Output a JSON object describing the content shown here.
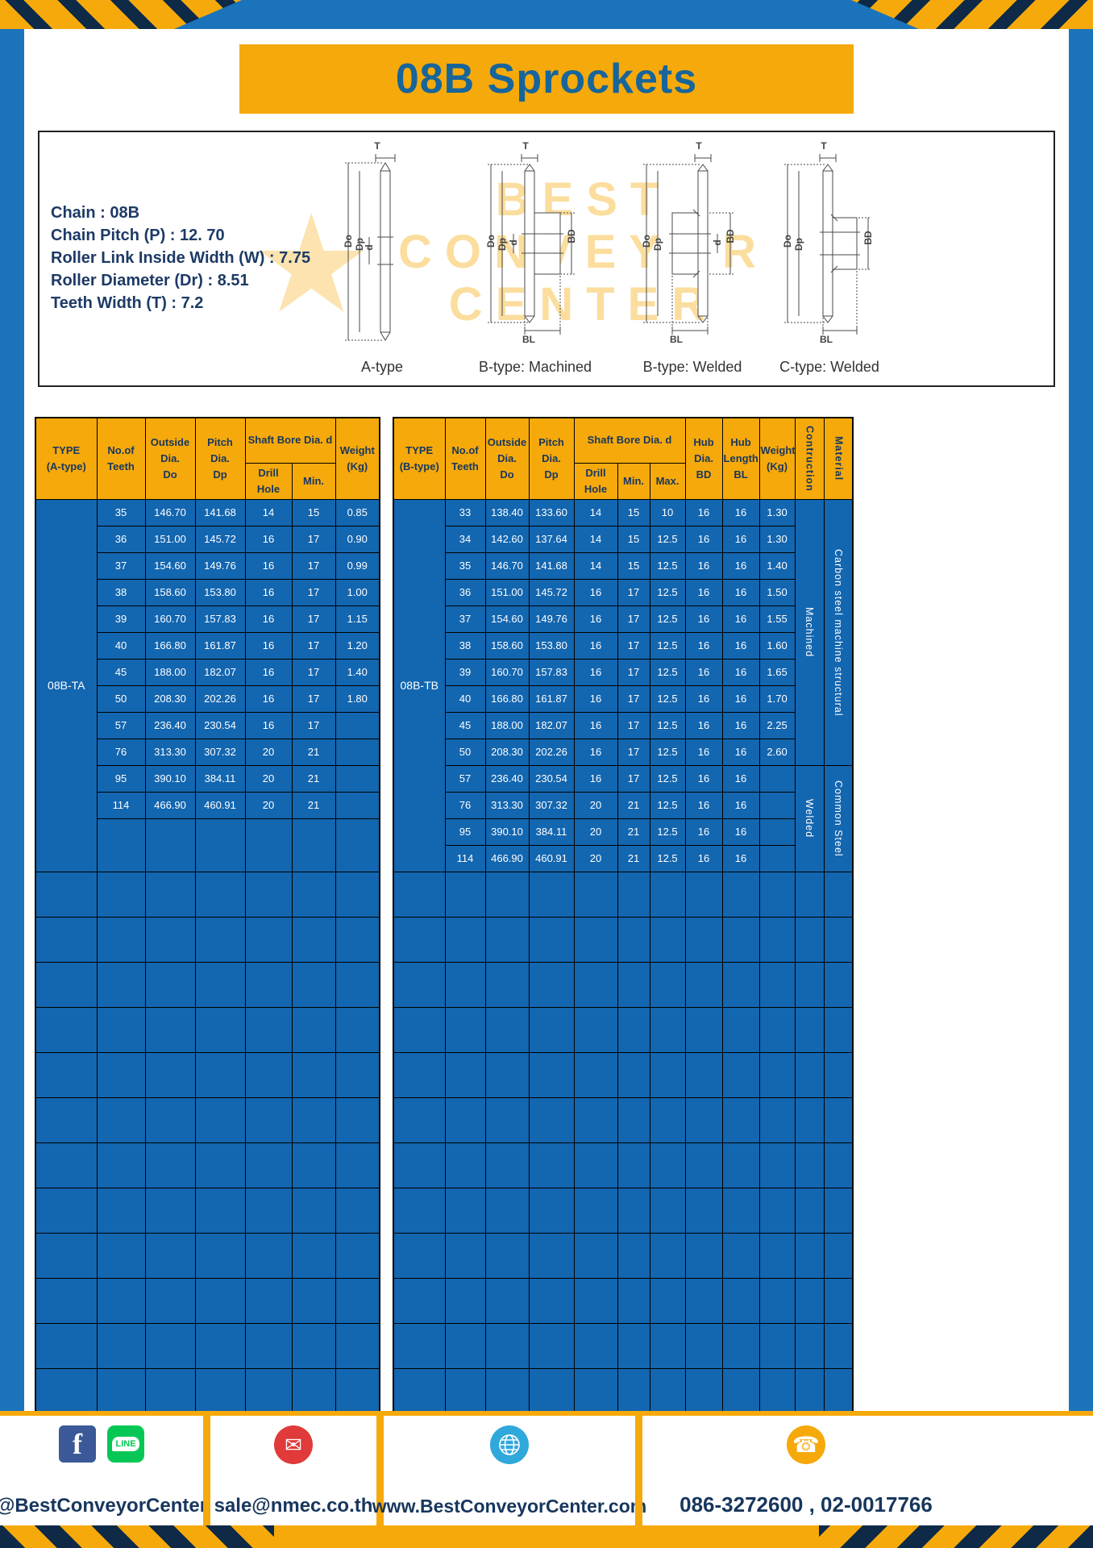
{
  "page": {
    "title": "08B Sprockets"
  },
  "specs": {
    "lines": [
      "Chain : 08B",
      "Chain Pitch (P) : 12. 70",
      "Roller Link Inside Width (W) : 7.75",
      "Roller Diameter (Dr) : 8.51",
      "Teeth Width (T) : 7.2"
    ]
  },
  "watermark": {
    "star": "★",
    "lines": [
      "BEST",
      "CONVEYOR",
      "CENTER"
    ]
  },
  "diagrams": {
    "captions": [
      "A-type",
      "B-type: Machined",
      "B-type: Welded",
      "C-type: Welded"
    ],
    "dims": {
      "t": "T",
      "outer": "Do",
      "pitch": "Dp",
      "bore": "d",
      "hub_dia": "BD",
      "hub_len": "BL"
    }
  },
  "table_a": {
    "header": {
      "type": "TYPE\n(A-type)",
      "teeth": "No.of\nTeeth",
      "outside": "Outside\nDia.\nDo",
      "pitch": "Pitch Dia.\nDp",
      "shaft": "Shaft Bore Dia. d",
      "drill": "Drill Hole",
      "min": "Min.",
      "weight": "Weight\n(Kg)"
    },
    "type_label": "08B-TA",
    "rows": [
      [
        "35",
        "146.70",
        "141.68",
        "14",
        "15",
        "0.85"
      ],
      [
        "36",
        "151.00",
        "145.72",
        "16",
        "17",
        "0.90"
      ],
      [
        "37",
        "154.60",
        "149.76",
        "16",
        "17",
        "0.99"
      ],
      [
        "38",
        "158.60",
        "153.80",
        "16",
        "17",
        "1.00"
      ],
      [
        "39",
        "160.70",
        "157.83",
        "16",
        "17",
        "1.15"
      ],
      [
        "40",
        "166.80",
        "161.87",
        "16",
        "17",
        "1.20"
      ],
      [
        "45",
        "188.00",
        "182.07",
        "16",
        "17",
        "1.40"
      ],
      [
        "50",
        "208.30",
        "202.26",
        "16",
        "17",
        "1.80"
      ],
      [
        "57",
        "236.40",
        "230.54",
        "16",
        "17",
        ""
      ],
      [
        "76",
        "313.30",
        "307.32",
        "20",
        "21",
        ""
      ],
      [
        "95",
        "390.10",
        "384.11",
        "20",
        "21",
        ""
      ],
      [
        "114",
        "466.90",
        "460.91",
        "20",
        "21",
        ""
      ]
    ],
    "empty_row_count": 12
  },
  "table_b": {
    "header": {
      "type": "TYPE\n(B-type)",
      "teeth": "No.of\nTeeth",
      "outside": "Outside\nDia.\nDo",
      "pitch": "Pitch Dia.\nDp",
      "shaft": "Shaft Bore Dia. d",
      "drill": "Drill Hole",
      "min": "Min.",
      "max": "Max.",
      "hub_dia": "Hub Dia.\nBD",
      "hub_len": "Hub\nLength\nBL",
      "weight": "Weight\n(Kg)",
      "construction": "Contruction",
      "material": "Material"
    },
    "type_label": "08B-TB",
    "rows": [
      [
        "33",
        "138.40",
        "133.60",
        "14",
        "15",
        "10",
        "16",
        "16",
        "1.30"
      ],
      [
        "34",
        "142.60",
        "137.64",
        "14",
        "15",
        "12.5",
        "16",
        "16",
        "1.30"
      ],
      [
        "35",
        "146.70",
        "141.68",
        "14",
        "15",
        "12.5",
        "16",
        "16",
        "1.40"
      ],
      [
        "36",
        "151.00",
        "145.72",
        "16",
        "17",
        "12.5",
        "16",
        "16",
        "1.50"
      ],
      [
        "37",
        "154.60",
        "149.76",
        "16",
        "17",
        "12.5",
        "16",
        "16",
        "1.55"
      ],
      [
        "38",
        "158.60",
        "153.80",
        "16",
        "17",
        "12.5",
        "16",
        "16",
        "1.60"
      ],
      [
        "39",
        "160.70",
        "157.83",
        "16",
        "17",
        "12.5",
        "16",
        "16",
        "1.65"
      ],
      [
        "40",
        "166.80",
        "161.87",
        "16",
        "17",
        "12.5",
        "16",
        "16",
        "1.70"
      ],
      [
        "45",
        "188.00",
        "182.07",
        "16",
        "17",
        "12.5",
        "16",
        "16",
        "2.25"
      ],
      [
        "50",
        "208.30",
        "202.26",
        "16",
        "17",
        "12.5",
        "16",
        "16",
        "2.60"
      ],
      [
        "57",
        "236.40",
        "230.54",
        "16",
        "17",
        "12.5",
        "16",
        "16",
        ""
      ],
      [
        "76",
        "313.30",
        "307.32",
        "20",
        "21",
        "12.5",
        "16",
        "16",
        ""
      ],
      [
        "95",
        "390.10",
        "384.11",
        "20",
        "21",
        "12.5",
        "16",
        "16",
        ""
      ],
      [
        "114",
        "466.90",
        "460.91",
        "20",
        "21",
        "12.5",
        "16",
        "16",
        ""
      ]
    ],
    "construction_groups": [
      {
        "label": "Machined",
        "span": 10
      },
      {
        "label": "Welded",
        "span": 4
      }
    ],
    "material_groups": [
      {
        "label": "Carbon steel  machine structural",
        "span": 10
      },
      {
        "label": "Common  Steel",
        "span": 4
      }
    ],
    "empty_row_count": 12
  },
  "footer": {
    "social_handle": "@BestConveyorCenter",
    "email": "sale@nmec.co.th",
    "website": "www.BestConveyorCenter.com",
    "phone_numbers": "086-3272600 , 02-0017766",
    "icons": {
      "facebook_glyph": "f",
      "line_label": "LINE",
      "mail_glyph": "✉",
      "phone_glyph": "☎"
    }
  }
}
